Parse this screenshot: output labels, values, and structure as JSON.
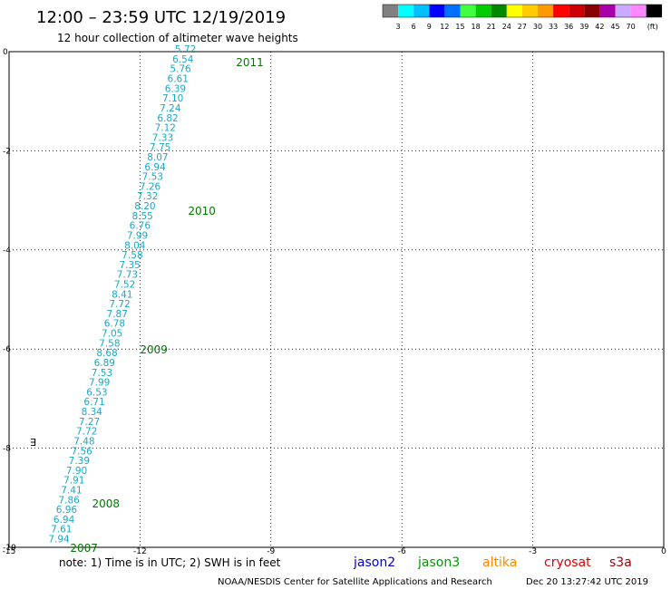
{
  "title": "12:00 – 23:59 UTC 12/19/2019",
  "subtitle": "12 hour collection of altimeter wave heights",
  "color_scale": {
    "colors": [
      "#808080",
      "#00ffff",
      "#00c0ff",
      "#0000ff",
      "#0070ff",
      "#40ff40",
      "#00cc00",
      "#008800",
      "#ffff00",
      "#ffcc00",
      "#ff9900",
      "#ff0000",
      "#cc0000",
      "#880000",
      "#aa00aa",
      "#ccaaff",
      "#ff88ff",
      "#000000"
    ],
    "labels": [
      "3",
      "6",
      "9",
      "12",
      "15",
      "18",
      "21",
      "24",
      "27",
      "30",
      "33",
      "36",
      "39",
      "42",
      "45",
      "70"
    ],
    "unit": "(ft)"
  },
  "map": {
    "x_ticks": [
      "-15",
      "-12",
      "-9",
      "-6",
      "-3",
      "0"
    ],
    "y_ticks": [
      "0",
      "-2",
      "-4",
      "-6",
      "-8",
      "-10"
    ],
    "x_range": [
      -15,
      0
    ],
    "y_range": [
      -10,
      0
    ],
    "grid": "dotted"
  },
  "track": {
    "color": "#1aa8c8",
    "start": {
      "lon": -11.2,
      "lat": -0.02
    },
    "end": {
      "lon": -14.1,
      "lat": -9.9
    },
    "values": [
      "5.72",
      "6.54",
      "5.76",
      "6.61",
      "6.39",
      "7.10",
      "7.24",
      "6.82",
      "7.12",
      "7.33",
      "7.75",
      "8.07",
      "6.94",
      "7.53",
      "7.26",
      "7.32",
      "8.20",
      "8.55",
      "6.76",
      "7.99",
      "8.04",
      "7.58",
      "7.35",
      "7.73",
      "7.52",
      "8.41",
      "7.72",
      "7.87",
      "6.78",
      "7.05",
      "7.58",
      "8.68",
      "6.89",
      "7.53",
      "7.99",
      "6.53",
      "6.71",
      "8.34",
      "7.27",
      "7.72",
      "7.48",
      "7.56",
      "7.39",
      "7.90",
      "7.91",
      "7.41",
      "7.86",
      "6.96",
      "6.94",
      "7.61",
      "7.94"
    ]
  },
  "time_labels": [
    {
      "text": "2011",
      "lon": -9.8,
      "lat": -0.2
    },
    {
      "text": "2010",
      "lon": -10.9,
      "lat": -3.2
    },
    {
      "text": "2009",
      "lon": -12.0,
      "lat": -6.0
    },
    {
      "text": "2008",
      "lon": -13.1,
      "lat": -9.1
    },
    {
      "text": "2007",
      "lon": -13.6,
      "lat": -10.0
    }
  ],
  "note": "note: 1) Time is in UTC; 2) SWH is in feet",
  "satellites": [
    {
      "name": "jason2",
      "color": "#0000cc"
    },
    {
      "name": "jason3",
      "color": "#009900"
    },
    {
      "name": "altika",
      "color": "#ff8800"
    },
    {
      "name": "cryosat",
      "color": "#dd0000"
    },
    {
      "name": "s3a",
      "color": "#990000"
    }
  ],
  "credit": "NOAA/NESDIS Center for Satellite Applications and Research",
  "timestamp": "Dec 20 13:27:42 UTC 2019"
}
